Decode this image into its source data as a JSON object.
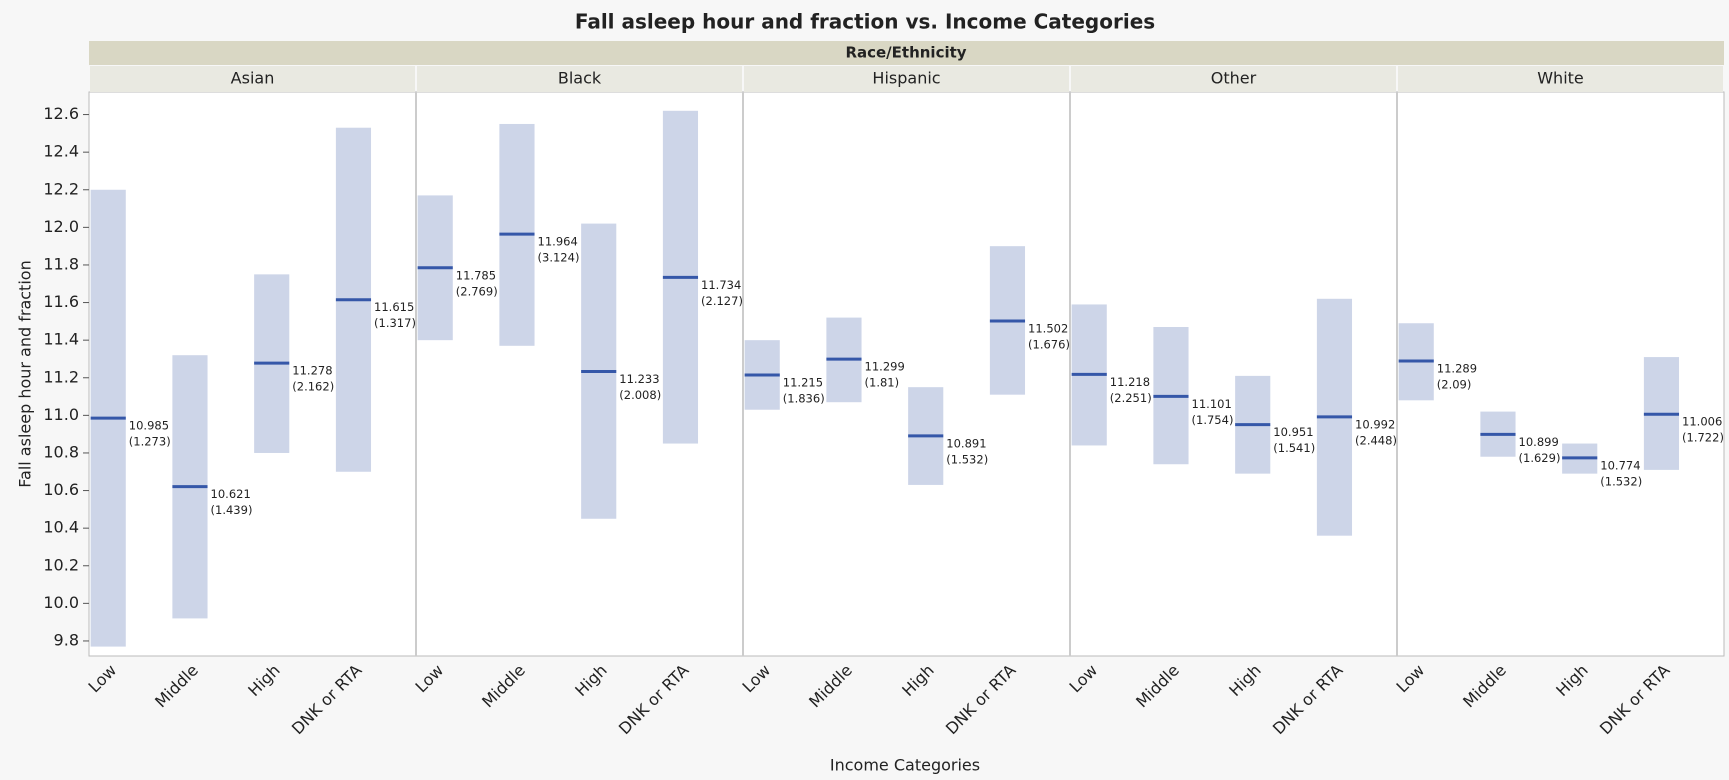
{
  "chart_data": {
    "type": "range",
    "title": "Fall asleep hour and fraction vs. Income Categories",
    "facet_label": "Race/Ethnicity",
    "x_label": "Income Categories",
    "y_label": "Fall asleep hour and fraction",
    "categories": [
      "Low",
      "Middle",
      "High",
      "DNK or RTA"
    ],
    "color": "#cdd5e8",
    "mean_color": "#3557a8",
    "ylim": [
      9.72,
      12.72
    ],
    "yticks": [
      9.8,
      {
        "value": 10,
        "label": "10.0"
      },
      10.2,
      10.4,
      10.6,
      10.8,
      {
        "value": 11,
        "label": "11.0"
      },
      11.2,
      11.4,
      11.6,
      11.8,
      {
        "value": 12,
        "label": "12.0"
      },
      12.2,
      12.4,
      12.6
    ],
    "panels": [
      {
        "name": "Asian",
        "means": [
          10.985,
          10.621,
          11.278,
          11.615
        ],
        "sds": [
          1.273,
          1.439,
          2.162,
          1.317
        ],
        "sd_labels": [
          "(1.273)",
          "(1.439)",
          "(2.162)",
          "(1.317)"
        ],
        "low": [
          9.77,
          9.92,
          10.8,
          10.7
        ],
        "high": [
          12.2,
          11.32,
          11.75,
          12.53
        ]
      },
      {
        "name": "Black",
        "means": [
          11.785,
          11.964,
          11.233,
          11.734
        ],
        "sds": [
          2.769,
          3.124,
          2.008,
          2.127
        ],
        "sd_labels": [
          "(2.769)",
          "(3.124)",
          "(2.008)",
          "(2.127)"
        ],
        "low": [
          11.4,
          11.37,
          10.45,
          10.85
        ],
        "high": [
          12.17,
          12.55,
          12.02,
          12.62
        ]
      },
      {
        "name": "Hispanic",
        "means": [
          11.215,
          11.299,
          10.891,
          11.502
        ],
        "sds": [
          1.836,
          1.81,
          1.532,
          1.676
        ],
        "sd_labels": [
          "(1.836)",
          "(1.81)",
          "(1.532)",
          "(1.676)"
        ],
        "low": [
          11.03,
          11.07,
          10.63,
          11.11
        ],
        "high": [
          11.4,
          11.52,
          11.15,
          11.9
        ]
      },
      {
        "name": "Other",
        "means": [
          11.218,
          11.101,
          10.951,
          10.992
        ],
        "sds": [
          2.251,
          1.754,
          1.541,
          2.448
        ],
        "sd_labels": [
          "(2.251)",
          "(1.754)",
          "(1.541)",
          "(2.448)"
        ],
        "low": [
          10.84,
          10.74,
          10.69,
          10.36
        ],
        "high": [
          11.59,
          11.47,
          11.21,
          11.62
        ]
      },
      {
        "name": "White",
        "means": [
          11.289,
          10.899,
          10.774,
          11.006
        ],
        "sds": [
          2.09,
          1.629,
          1.532,
          1.722
        ],
        "sd_labels": [
          "(2.09)",
          "(1.629)",
          "(1.532)",
          "(1.722)"
        ],
        "low": [
          11.08,
          10.78,
          10.69,
          10.71
        ],
        "high": [
          11.49,
          11.02,
          10.85,
          11.31
        ]
      }
    ]
  }
}
